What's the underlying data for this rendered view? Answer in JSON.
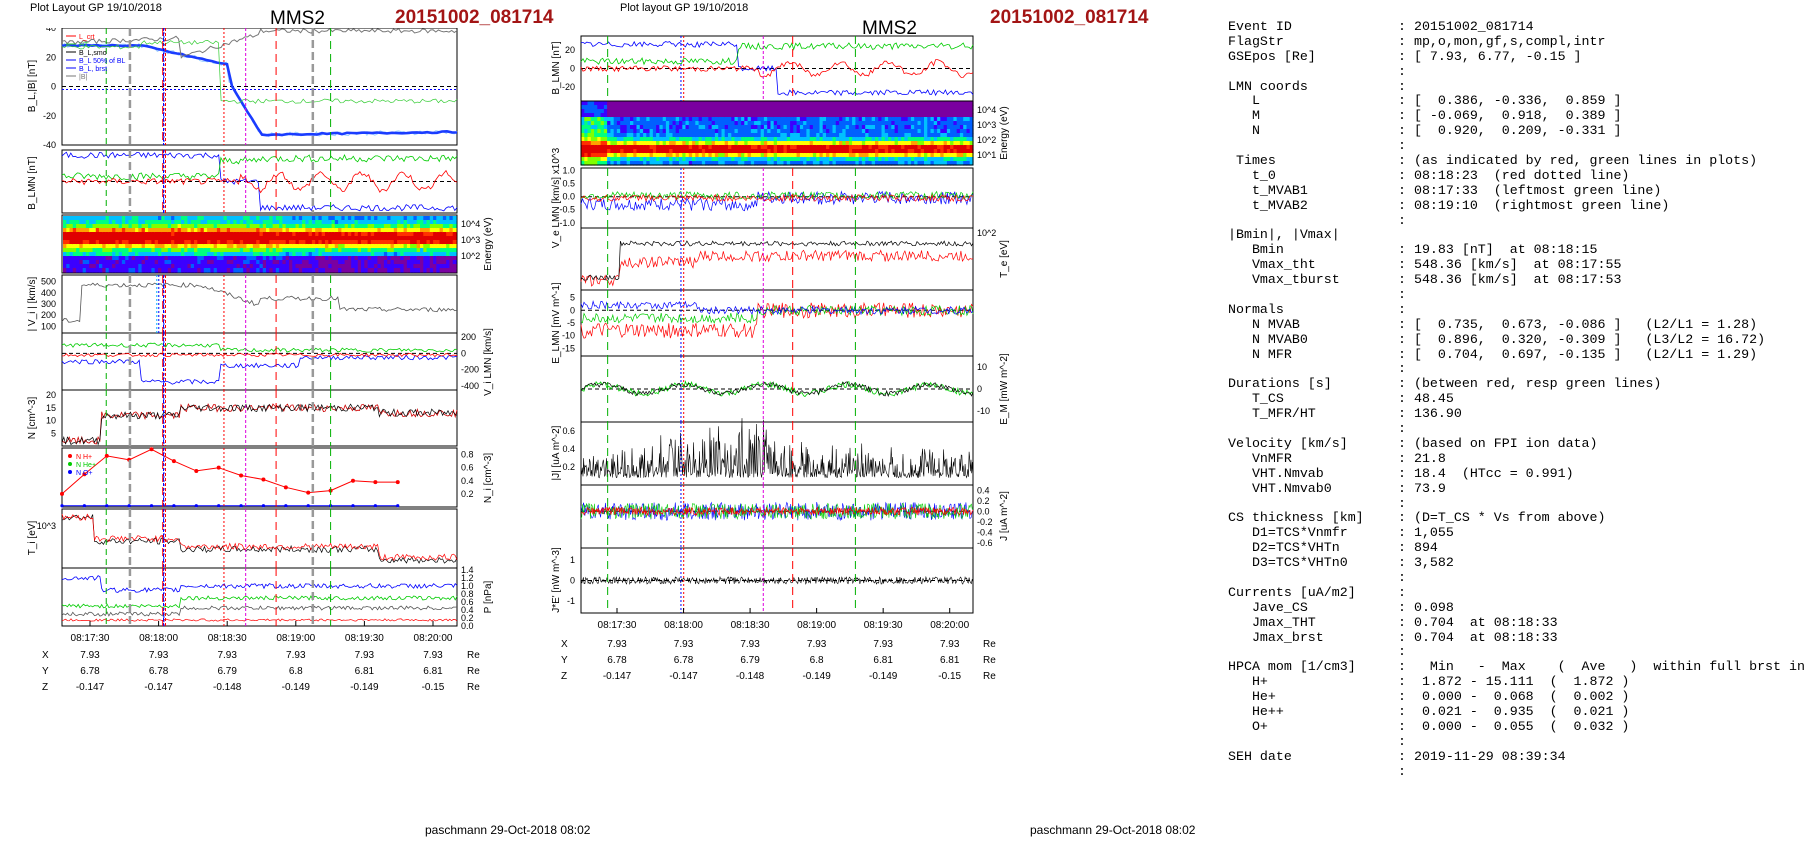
{
  "left": {
    "header": "Plot Layout GP 19/10/2018",
    "spacecraft": "MMS2",
    "event": "20151002_081714",
    "footer": "paschmann 29-Oct-2018 08:02",
    "time_ticks": [
      "08:17:30",
      "08:18:00",
      "08:18:30",
      "08:19:00",
      "08:19:30",
      "08:20:00"
    ],
    "pos": {
      "labels": [
        "X",
        "Y",
        "Z"
      ],
      "unit": "Re",
      "X": [
        "7.93",
        "7.93",
        "7.93",
        "7.93",
        "7.93",
        "7.93"
      ],
      "Y": [
        "6.78",
        "6.78",
        "6.79",
        "6.8",
        "6.81",
        "6.81"
      ],
      "Z": [
        "-0.147",
        "-0.147",
        "-0.148",
        "-0.149",
        "-0.149",
        "-0.15"
      ]
    },
    "panels": [
      {
        "ylabel": "B_L,|B| [nT]",
        "ticks_left": [
          "40",
          "20",
          "0",
          "-20",
          "-40"
        ],
        "legend": [
          "L_crt",
          "HT",
          "B_L,smo",
          "B_L 50% of BL",
          "B_L, brst",
          "|B|"
        ]
      },
      {
        "ylabel": "B_LMN [nT]",
        "ticks_left": [],
        "legend": [
          "B_L",
          "B_M",
          "B_N"
        ]
      },
      {
        "ylabel": "Energy (eV)",
        "ticks_right": [
          "10^4",
          "10^3",
          "10^2"
        ],
        "legend": []
      },
      {
        "ylabel": "| V_i | [km/s]",
        "ticks_left": [
          "500",
          "400",
          "300",
          "200",
          "100"
        ],
        "legend": [
          "HT",
          "fpi",
          "Vmax"
        ]
      },
      {
        "ylabel": "V_i LMN [km/s]",
        "ticks_right": [
          "200",
          "0",
          "-200",
          "-400"
        ],
        "legend": [
          "V_L"
        ]
      },
      {
        "ylabel": "N [cm^-3]",
        "ticks_left": [
          "20",
          "15",
          "10",
          "5"
        ],
        "legend": [
          "Ne",
          "Ni"
        ]
      },
      {
        "ylabel": "N_i [cm^-3]",
        "ticks_right": [
          "0.8",
          "0.6",
          "0.4",
          "0.2"
        ],
        "legend": [
          "N H+",
          "N He+",
          "N O+"
        ]
      },
      {
        "ylabel": "T_i [eV]",
        "ticks_left": [
          "10^3"
        ],
        "legend": [
          "T_i"
        ]
      },
      {
        "ylabel": "P [nPa]",
        "ticks_right": [
          "1.4",
          "1.2",
          "1.0",
          "0.8",
          "0.6",
          "0.4",
          "0.2",
          "0.0"
        ],
        "legend": [
          "P_i",
          "P_e",
          "P_B"
        ]
      }
    ]
  },
  "middle": {
    "header": "Plot layout GP 19/10/2018",
    "spacecraft": "MMS2",
    "event": "20151002_081714",
    "footer": "paschmann 29-Oct-2018 08:02",
    "time_ticks": [
      "08:17:30",
      "08:18:00",
      "08:18:30",
      "08:19:00",
      "08:19:30",
      "08:20:00"
    ],
    "pos": {
      "labels": [
        "X",
        "Y",
        "Z"
      ],
      "unit": "Re",
      "X": [
        "7.93",
        "7.93",
        "7.93",
        "7.93",
        "7.93",
        "7.93"
      ],
      "Y": [
        "6.78",
        "6.78",
        "6.79",
        "6.8",
        "6.81",
        "6.81"
      ],
      "Z": [
        "-0.147",
        "-0.147",
        "-0.148",
        "-0.149",
        "-0.149",
        "-0.15"
      ]
    },
    "panels": [
      {
        "ylabel": "B_LMN [nT]",
        "ticks_left": [
          "20",
          "0",
          "-20"
        ],
        "legend": [
          "B_L",
          "B_M",
          "B_N"
        ]
      },
      {
        "ylabel": "Energy (eV)",
        "ticks_right": [
          "10^4",
          "10^3",
          "10^2",
          "10^1"
        ],
        "legend": []
      },
      {
        "ylabel": "V_e LMN [km/s] x10^3",
        "ticks_left": [
          "1.0",
          "0.5",
          "0.0",
          "-0.5",
          "-1.0"
        ],
        "legend": [
          "V_L"
        ]
      },
      {
        "ylabel": "T_e [eV]",
        "ticks_right": [
          "10^2"
        ],
        "legend": []
      },
      {
        "ylabel": "E_LMN [mV m^-1]",
        "ticks_left": [
          "5",
          "0",
          "-5",
          "-10",
          "-15"
        ],
        "legend": [
          "E_L"
        ]
      },
      {
        "ylabel": "E_M [mV m^-2]",
        "ticks_right": [
          "10",
          "0",
          "-10"
        ],
        "legend": [
          "(VexB)_M",
          "E_M"
        ]
      },
      {
        "ylabel": "|J| [uA m^-2]",
        "ticks_left": [
          "0.6",
          "0.4",
          "0.2"
        ],
        "legend": [
          "|J|"
        ]
      },
      {
        "ylabel": "J [uA m^-2]",
        "ticks_right": [
          "0.4",
          "0.2",
          "0.0",
          "-0.2",
          "-0.4",
          "-0.6"
        ],
        "legend": [
          "J_L",
          "J_M"
        ]
      },
      {
        "ylabel": "J*E' [nW m^-3]",
        "ticks_left": [
          "1",
          "0",
          "-1"
        ],
        "legend": [
          "J*E'"
        ]
      }
    ]
  },
  "info": [
    [
      "Event ID",
      ": 20151002_081714"
    ],
    [
      "FlagStr",
      ": mp,o,mon,gf,s,compl,intr"
    ],
    [
      "GSEpos [Re]",
      ": [ 7.93, 6.77, -0.15 ]"
    ],
    [
      "",
      ":"
    ],
    [
      "LMN coords",
      ":"
    ],
    [
      "   L",
      ": [  0.386, -0.336,  0.859 ]"
    ],
    [
      "   M",
      ": [ -0.069,  0.918,  0.389 ]"
    ],
    [
      "   N",
      ": [  0.920,  0.209, -0.331 ]"
    ],
    [
      "",
      ":"
    ],
    [
      " Times",
      ": (as indicated by red, green lines in plots)"
    ],
    [
      "   t_0",
      ": 08:18:23  (red dotted line)"
    ],
    [
      "   t_MVAB1",
      ": 08:17:33  (leftmost green line)"
    ],
    [
      "   t_MVAB2",
      ": 08:19:10  (rightmost green line)"
    ],
    [
      "",
      ":"
    ],
    [
      "|Bmin|, |Vmax|",
      ""
    ],
    [
      "   Bmin",
      ": 19.83 [nT]  at 08:18:15"
    ],
    [
      "   Vmax_tht",
      ": 548.36 [km/s]  at 08:17:55"
    ],
    [
      "   Vmax_tburst",
      ": 548.36 [km/s]  at 08:17:53"
    ],
    [
      "",
      ":"
    ],
    [
      "Normals",
      ":"
    ],
    [
      "   N MVAB",
      ": [  0.735,  0.673, -0.086 ]   (L2/L1 = 1.28)"
    ],
    [
      "   N MVAB0",
      ": [  0.896,  0.320, -0.309 ]   (L3/L2 = 16.72)"
    ],
    [
      "   N MFR",
      ": [  0.704,  0.697, -0.135 ]   (L2/L1 = 1.29)"
    ],
    [
      "",
      ":"
    ],
    [
      "Durations [s]",
      ": (between red, resp green lines)"
    ],
    [
      "   T_CS",
      ": 48.45"
    ],
    [
      "   T_MFR/HT",
      ": 136.90"
    ],
    [
      "",
      ":"
    ],
    [
      "Velocity [km/s]",
      ": (based on FPI ion data)"
    ],
    [
      "   VnMFR",
      ": 21.8"
    ],
    [
      "   VHT.Nmvab",
      ": 18.4  (HTcc = 0.991)"
    ],
    [
      "   VHT.Nmvab0",
      ": 73.9"
    ],
    [
      "",
      ":"
    ],
    [
      "CS thickness [km]",
      ": (D=T_CS * Vs from above)"
    ],
    [
      "   D1=TCS*Vnmfr",
      ": 1,055"
    ],
    [
      "   D2=TCS*VHTn",
      ": 894"
    ],
    [
      "   D3=TCS*VHTn0",
      ": 3,582"
    ],
    [
      "",
      ":"
    ],
    [
      "Currents [uA/m2]",
      ":"
    ],
    [
      "   Jave_CS",
      ": 0.098"
    ],
    [
      "   Jmax_THT",
      ": 0.704  at 08:18:33"
    ],
    [
      "   Jmax_brst",
      ": 0.704  at 08:18:33"
    ],
    [
      "",
      ":"
    ],
    [
      "HPCA mom [1/cm3]",
      ":   Min   -  Max    (  Ave   )  within full brst int"
    ],
    [
      "   H+",
      ":  1.872 - 15.111  (  1.872 )"
    ],
    [
      "   He+",
      ":  0.000 -  0.068  (  0.002 )"
    ],
    [
      "   He++",
      ":  0.021 -  0.935  (  0.021 )"
    ],
    [
      "   O+",
      ":  0.000 -  0.055  (  0.032 )"
    ],
    [
      "",
      ":"
    ],
    [
      "SEH date",
      ": 2019-11-29 08:39:34"
    ],
    [
      "",
      ":"
    ]
  ],
  "chart_data": [
    {
      "type": "line",
      "title": "MMS2 20151002_081714",
      "xlabel": "",
      "x": [
        "08:17:30",
        "08:18:00",
        "08:18:30",
        "08:19:00",
        "08:19:30",
        "08:20:00"
      ],
      "panel": "B_L,|B| [nT]",
      "ylim": [
        -40,
        40
      ],
      "series": [
        {
          "name": "B_L, brst",
          "values": [
            28,
            26,
            5,
            -34,
            -33,
            -31
          ]
        },
        {
          "name": "|B|",
          "values": [
            30,
            33,
            30,
            36,
            39,
            40
          ]
        }
      ]
    },
    {
      "type": "scatter",
      "panel": "N_i [cm^-3]",
      "x": [
        "08:17:30",
        "08:18:00",
        "08:18:30",
        "08:19:00",
        "08:19:30",
        "08:20:00"
      ],
      "ylim": [
        0,
        0.9
      ],
      "series": [
        {
          "name": "N H+",
          "values": [
            0.55,
            0.78,
            0.55,
            0.3,
            0.22,
            0.45
          ]
        },
        {
          "name": "N O+",
          "values": [
            0.02,
            0.03,
            0.03,
            0.03,
            0.02,
            0.02
          ]
        }
      ]
    }
  ],
  "colors": {
    "event": "#a31515",
    "red": "#ff0000",
    "green": "#00cc00",
    "blue": "#0000ff",
    "magenta": "#dd00dd",
    "gray": "#888888"
  }
}
